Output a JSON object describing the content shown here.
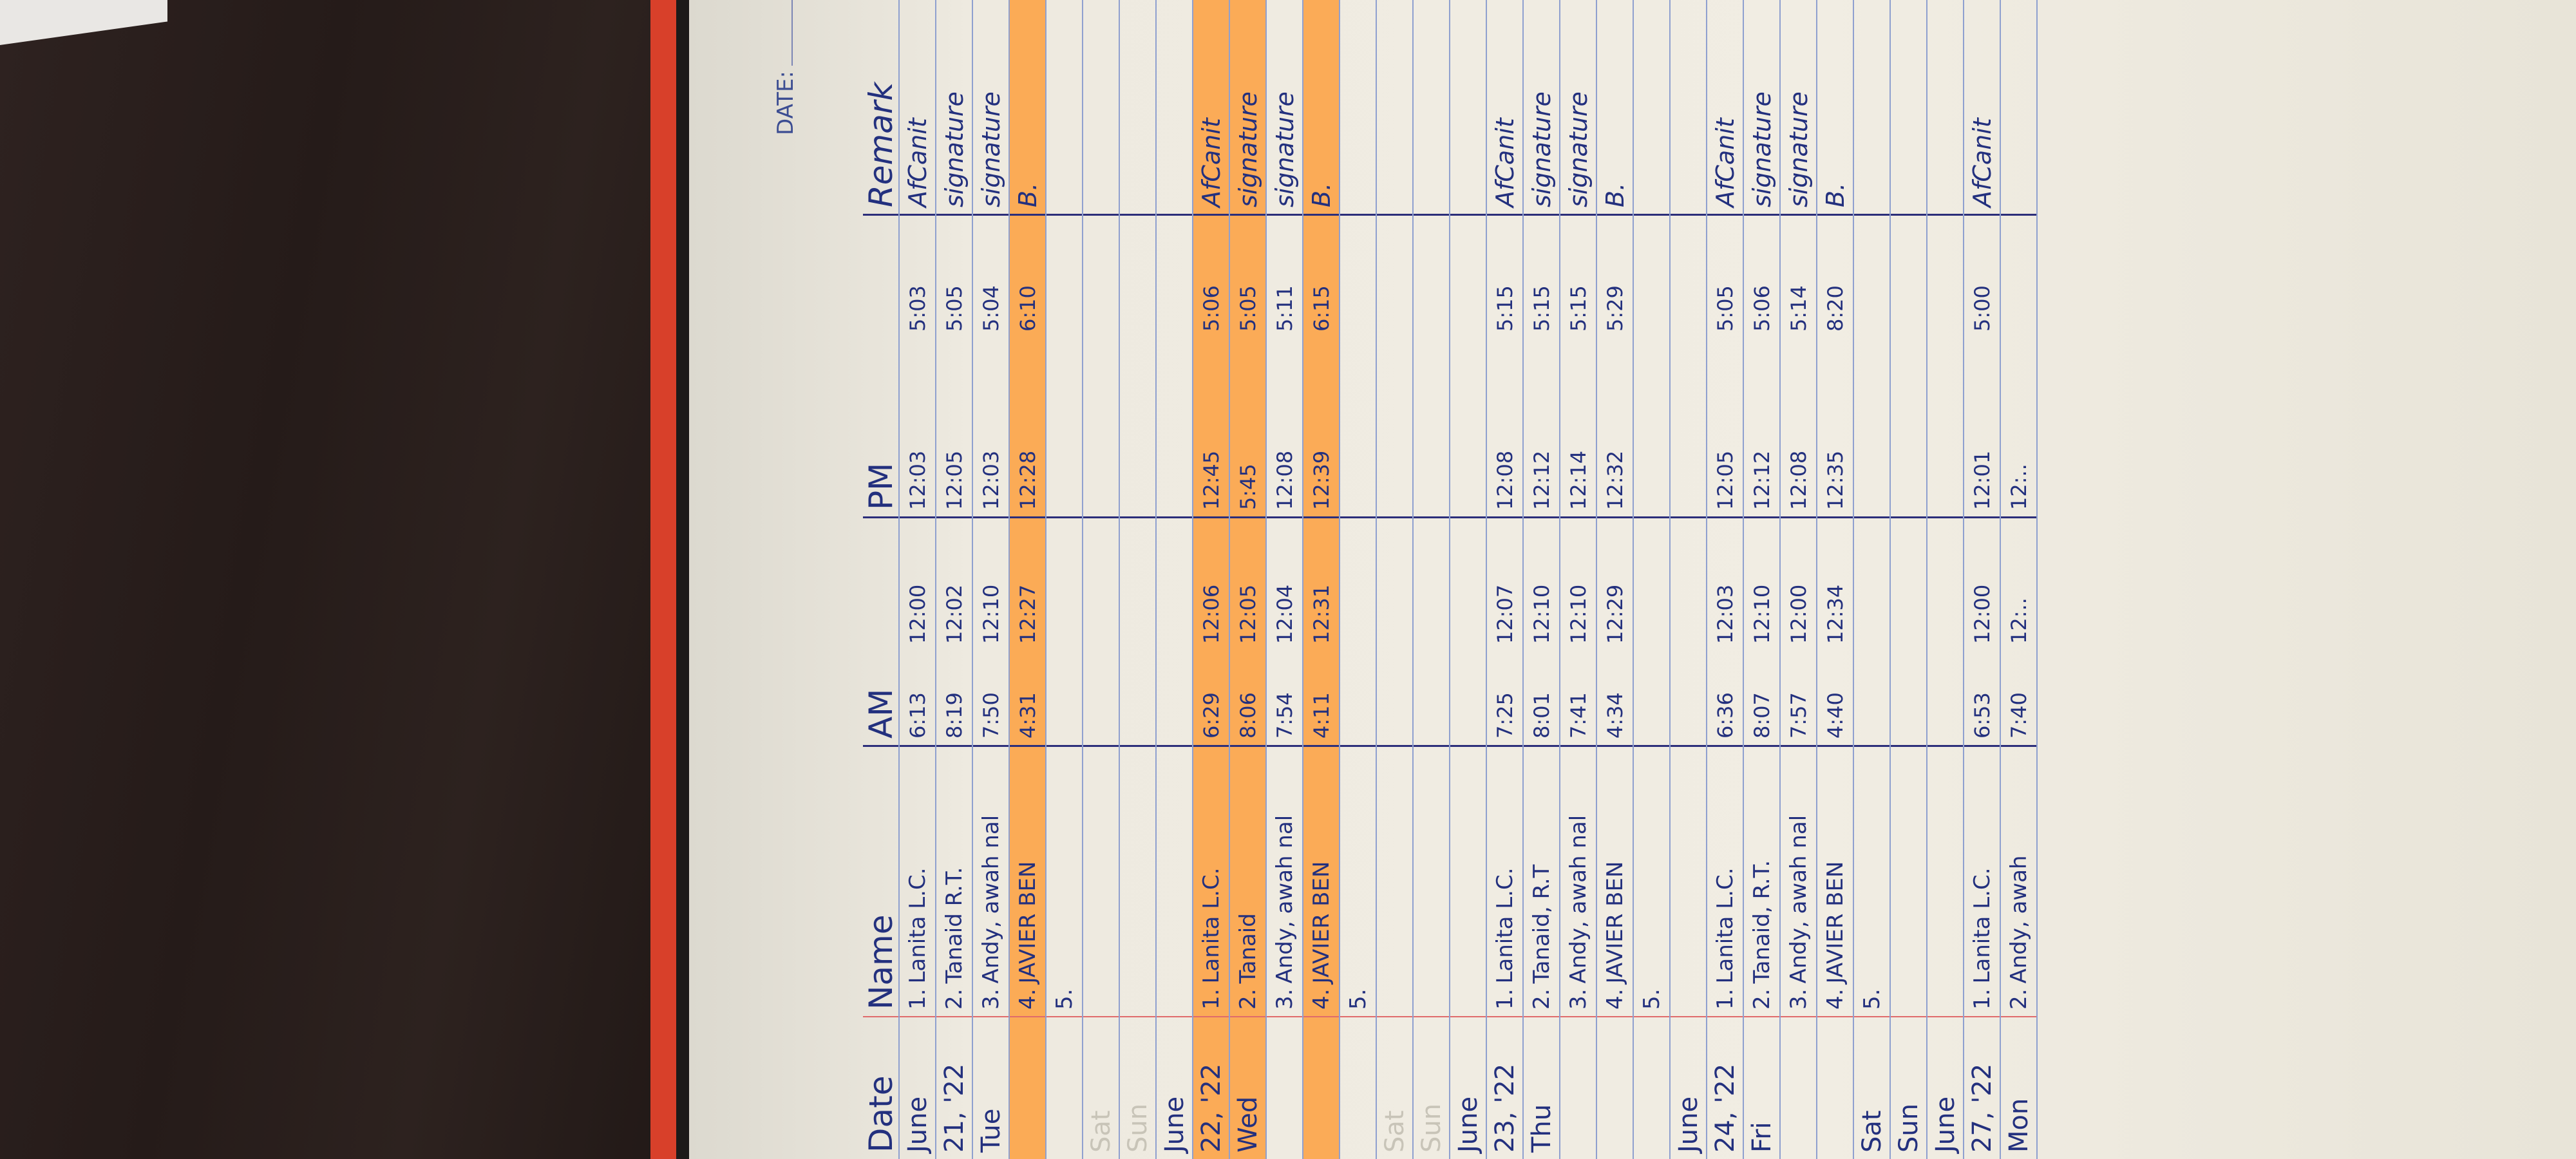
{
  "header": {
    "date_label": "DATE:"
  },
  "columns": [
    "Date",
    "Name",
    "AM",
    "",
    "PM",
    "",
    "Remark"
  ],
  "rows": [
    {
      "date": "June",
      "no": "1.",
      "name": "Lanita L.C.",
      "am_in": "6:13",
      "am_out": "12:00",
      "pm_in": "12:03",
      "pm_out": "5:03",
      "remark": "AfCanit"
    },
    {
      "date": "21, '22",
      "no": "2.",
      "name": "Tanaid R.T.",
      "am_in": "8:19",
      "am_out": "12:02",
      "pm_in": "12:05",
      "pm_out": "5:05",
      "remark": "signature"
    },
    {
      "date": "Tue",
      "no": "3.",
      "name": "Andy, awah nal",
      "am_in": "7:50",
      "am_out": "12:10",
      "pm_in": "12:03",
      "pm_out": "5:04",
      "remark": "signature"
    },
    {
      "date": "",
      "no": "4.",
      "name": "JAVIER BEN",
      "am_in": "4:31",
      "am_out": "12:27",
      "pm_in": "12:28",
      "pm_out": "6:10",
      "remark": "B.",
      "highlight": true
    },
    {
      "date": "",
      "no": "5.",
      "name": "",
      "am_in": "",
      "am_out": "",
      "pm_in": "",
      "pm_out": "",
      "remark": ""
    },
    {
      "date": "Sat",
      "no": "",
      "name": "",
      "am_in": "",
      "am_out": "",
      "pm_in": "",
      "pm_out": "",
      "remark": "",
      "weekend": true
    },
    {
      "date": "Sun",
      "no": "",
      "name": "",
      "am_in": "",
      "am_out": "",
      "pm_in": "",
      "pm_out": "",
      "remark": "",
      "weekend": true
    },
    {
      "date": "June",
      "no": "",
      "name": "",
      "am_in": "",
      "am_out": "",
      "pm_in": "",
      "pm_out": "",
      "remark": ""
    },
    {
      "date": "22, '22",
      "no": "1.",
      "name": "Lanita L.C.",
      "am_in": "6:29",
      "am_out": "12:06",
      "pm_in": "12:45",
      "pm_out": "5:06",
      "remark": "AfCanit",
      "highlight": true
    },
    {
      "date": "Wed",
      "no": "2.",
      "name": "Tanaid",
      "am_in": "8:06",
      "am_out": "12:05",
      "pm_in": "5:45",
      "pm_out": "5:05",
      "remark": "signature",
      "highlight": true
    },
    {
      "date": "",
      "no": "3.",
      "name": "Andy, awah nal",
      "am_in": "7:54",
      "am_out": "12:04",
      "pm_in": "12:08",
      "pm_out": "5:11",
      "remark": "signature"
    },
    {
      "date": "",
      "no": "4.",
      "name": "JAVIER BEN",
      "am_in": "4:11",
      "am_out": "12:31",
      "pm_in": "12:39",
      "pm_out": "6:15",
      "remark": "B.",
      "highlight": true
    },
    {
      "date": "",
      "no": "5.",
      "name": "",
      "am_in": "",
      "am_out": "",
      "pm_in": "",
      "pm_out": "",
      "remark": ""
    },
    {
      "date": "Sat",
      "no": "",
      "name": "",
      "am_in": "",
      "am_out": "",
      "pm_in": "",
      "pm_out": "",
      "remark": "",
      "weekend": true
    },
    {
      "date": "Sun",
      "no": "",
      "name": "",
      "am_in": "",
      "am_out": "",
      "pm_in": "",
      "pm_out": "",
      "remark": "",
      "weekend": true
    },
    {
      "date": "June",
      "no": "",
      "name": "",
      "am_in": "",
      "am_out": "",
      "pm_in": "",
      "pm_out": "",
      "remark": ""
    },
    {
      "date": "23, '22",
      "no": "1.",
      "name": "Lanita L.C.",
      "am_in": "7:25",
      "am_out": "12:07",
      "pm_in": "12:08",
      "pm_out": "5:15",
      "remark": "AfCanit"
    },
    {
      "date": "Thu",
      "no": "2.",
      "name": "Tanaid, R.T",
      "am_in": "8:01",
      "am_out": "12:10",
      "pm_in": "12:12",
      "pm_out": "5:15",
      "remark": "signature"
    },
    {
      "date": "",
      "no": "3.",
      "name": "Andy, awah nal",
      "am_in": "7:41",
      "am_out": "12:10",
      "pm_in": "12:14",
      "pm_out": "5:15",
      "remark": "signature"
    },
    {
      "date": "",
      "no": "4.",
      "name": "JAVIER BEN",
      "am_in": "4:34",
      "am_out": "12:29",
      "pm_in": "12:32",
      "pm_out": "5:29",
      "remark": "B."
    },
    {
      "date": "",
      "no": "5.",
      "name": "",
      "am_in": "",
      "am_out": "",
      "pm_in": "",
      "pm_out": "",
      "remark": ""
    },
    {
      "date": "June",
      "no": "",
      "name": "",
      "am_in": "",
      "am_out": "",
      "pm_in": "",
      "pm_out": "",
      "remark": ""
    },
    {
      "date": "24, '22",
      "no": "1.",
      "name": "Lanita L.C.",
      "am_in": "6:36",
      "am_out": "12:03",
      "pm_in": "12:05",
      "pm_out": "5:05",
      "remark": "AfCanit"
    },
    {
      "date": "Fri",
      "no": "2.",
      "name": "Tanaid, R.T.",
      "am_in": "8:07",
      "am_out": "12:10",
      "pm_in": "12:12",
      "pm_out": "5:06",
      "remark": "signature"
    },
    {
      "date": "",
      "no": "3.",
      "name": "Andy, awah nal",
      "am_in": "7:57",
      "am_out": "12:00",
      "pm_in": "12:08",
      "pm_out": "5:14",
      "remark": "signature"
    },
    {
      "date": "",
      "no": "4.",
      "name": "JAVIER BEN",
      "am_in": "4:40",
      "am_out": "12:34",
      "pm_in": "12:35",
      "pm_out": "8:20",
      "remark": "B."
    },
    {
      "date": "Sat",
      "no": "5.",
      "name": "",
      "am_in": "",
      "am_out": "",
      "pm_in": "",
      "pm_out": "",
      "remark": ""
    },
    {
      "date": "Sun",
      "no": "",
      "name": "",
      "am_in": "",
      "am_out": "",
      "pm_in": "",
      "pm_out": "",
      "remark": ""
    },
    {
      "date": "June",
      "no": "",
      "name": "",
      "am_in": "",
      "am_out": "",
      "pm_in": "",
      "pm_out": "",
      "remark": ""
    },
    {
      "date": "27, '22",
      "no": "1.",
      "name": "Lanita L.C.",
      "am_in": "6:53",
      "am_out": "12:00",
      "pm_in": "12:01",
      "pm_out": "5:00",
      "remark": "AfCanit"
    },
    {
      "date": "Mon",
      "no": "2.",
      "name": "Andy, awah",
      "am_in": "7:40",
      "am_out": "12:..",
      "pm_in": "12:..",
      "pm_out": "",
      "remark": ""
    }
  ],
  "colors": {
    "ink": "#23307e",
    "highlighter": "#ff9628",
    "cover": "#d8402a"
  }
}
